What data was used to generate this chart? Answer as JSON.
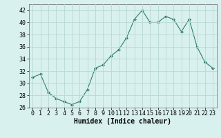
{
  "x": [
    0,
    1,
    2,
    3,
    4,
    5,
    6,
    7,
    8,
    9,
    10,
    11,
    12,
    13,
    14,
    15,
    16,
    17,
    18,
    19,
    20,
    21,
    22,
    23
  ],
  "y": [
    31,
    31.5,
    28.5,
    27.5,
    27,
    26.5,
    27,
    29,
    32.5,
    33,
    34.5,
    35.5,
    37.5,
    40.5,
    42,
    40,
    40,
    41,
    40.5,
    38.5,
    40.5,
    36,
    33.5,
    32.5
  ],
  "line_color": "#2e7d6e",
  "marker": "D",
  "marker_size": 2.0,
  "bg_color": "#d8f0ee",
  "grid_color": "#b8d8d4",
  "xlabel": "Humidex (Indice chaleur)",
  "ylim": [
    26,
    43
  ],
  "yticks": [
    26,
    28,
    30,
    32,
    34,
    36,
    38,
    40,
    42
  ],
  "xlim": [
    -0.5,
    23.5
  ],
  "xticks": [
    0,
    1,
    2,
    3,
    4,
    5,
    6,
    7,
    8,
    9,
    10,
    11,
    12,
    13,
    14,
    15,
    16,
    17,
    18,
    19,
    20,
    21,
    22,
    23
  ],
  "xtick_labels": [
    "0",
    "1",
    "2",
    "3",
    "4",
    "5",
    "6",
    "7",
    "8",
    "9",
    "10",
    "11",
    "12",
    "13",
    "14",
    "15",
    "16",
    "17",
    "18",
    "19",
    "20",
    "21",
    "22",
    "23"
  ],
  "xlabel_fontsize": 7,
  "tick_fontsize": 6
}
